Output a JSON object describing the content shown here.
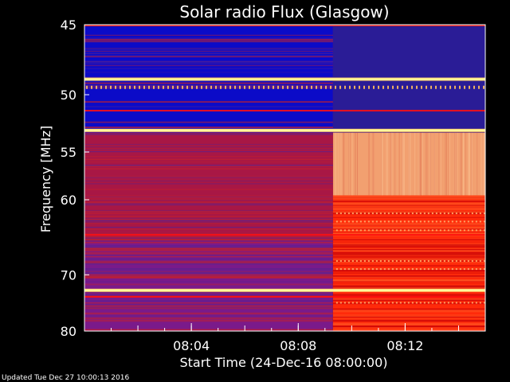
{
  "chart_data": {
    "type": "heatmap",
    "title": "Solar radio Flux (Glasgow)",
    "xlabel": "Start Time (24-Dec-16 08:00:00)",
    "ylabel": "Frequency [MHz]",
    "x_ticks": [
      "08:04",
      "08:08",
      "08:12"
    ],
    "x_tick_minutes": [
      4,
      8,
      12
    ],
    "x_range_minutes": [
      0,
      15
    ],
    "y_ticks": [
      45,
      50,
      55,
      60,
      70,
      80
    ],
    "y_range_mhz": [
      45,
      80
    ],
    "y_scale": "reciprocal",
    "transition_minute": 9.3,
    "before_transition": {
      "low_band_color": "#0b0bc8",
      "high_band_color": "#7a1a8a"
    },
    "after_transition": {
      "low_band_color": "#2a1c96",
      "mid_band_color": "#f2a070",
      "high_band_color": "#ff2a0a"
    },
    "bright_lines_mhz": [
      48.8,
      53.0,
      72.5
    ],
    "red_lines_mhz": [
      51.3,
      64.3,
      73.6
    ],
    "colormap": [
      "#000000",
      "#1a0090",
      "#0000ff",
      "#7a1a8a",
      "#d01010",
      "#ff3000",
      "#ffa060",
      "#ffe0a0",
      "#ffff80"
    ]
  },
  "footer": {
    "updated": "Updated Tue Dec 27 10:00:13 2016"
  }
}
